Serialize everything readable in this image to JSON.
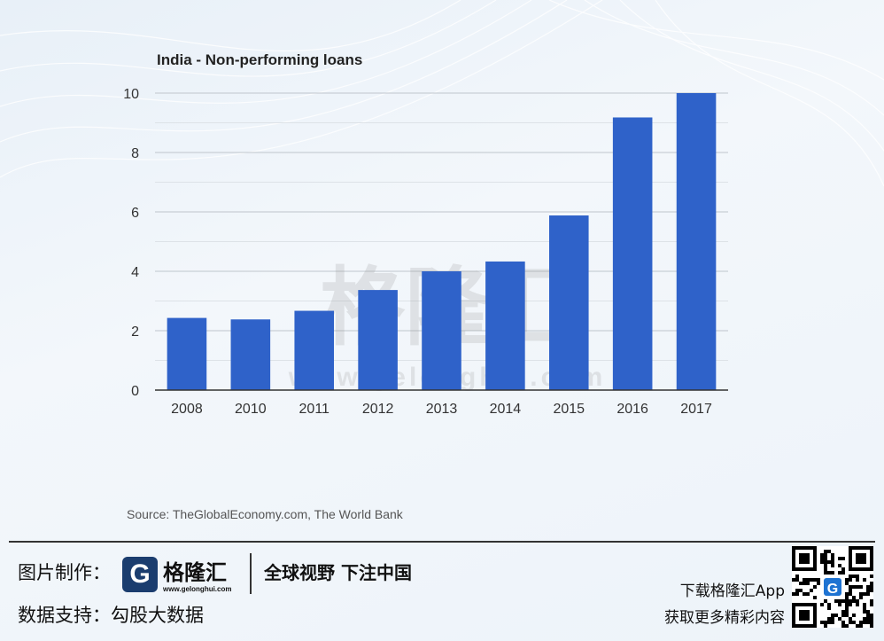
{
  "chart_data": {
    "type": "bar",
    "title": "India - Non-performing loans",
    "categories": [
      "2008",
      "2010",
      "2011",
      "2012",
      "2013",
      "2014",
      "2015",
      "2016",
      "2017"
    ],
    "values": [
      2.43,
      2.38,
      2.67,
      3.37,
      4.0,
      4.33,
      5.88,
      9.18,
      10.0
    ],
    "ylim": [
      0,
      10
    ],
    "yticks": [
      0,
      2,
      4,
      6,
      8,
      10
    ],
    "xlabel": "",
    "ylabel": "",
    "grid": true,
    "bar_color": "#2f62c9",
    "source": "Source: TheGlobalEconomy.com, The World Bank"
  },
  "watermark": {
    "cn": "格隆汇",
    "url": "www.gelonghui.com"
  },
  "footer": {
    "credit_label": "图片制作：",
    "logo_mark": "G",
    "logo_cn": "格隆汇",
    "logo_url": "www.gelonghui.com",
    "slogan": "全球视野 下注中国",
    "data_label": "数据支持：勾股大数据",
    "promo_line1": "下载格隆汇App",
    "promo_line2": "获取更多精彩内容",
    "qr_icon": "qr-code-icon"
  }
}
